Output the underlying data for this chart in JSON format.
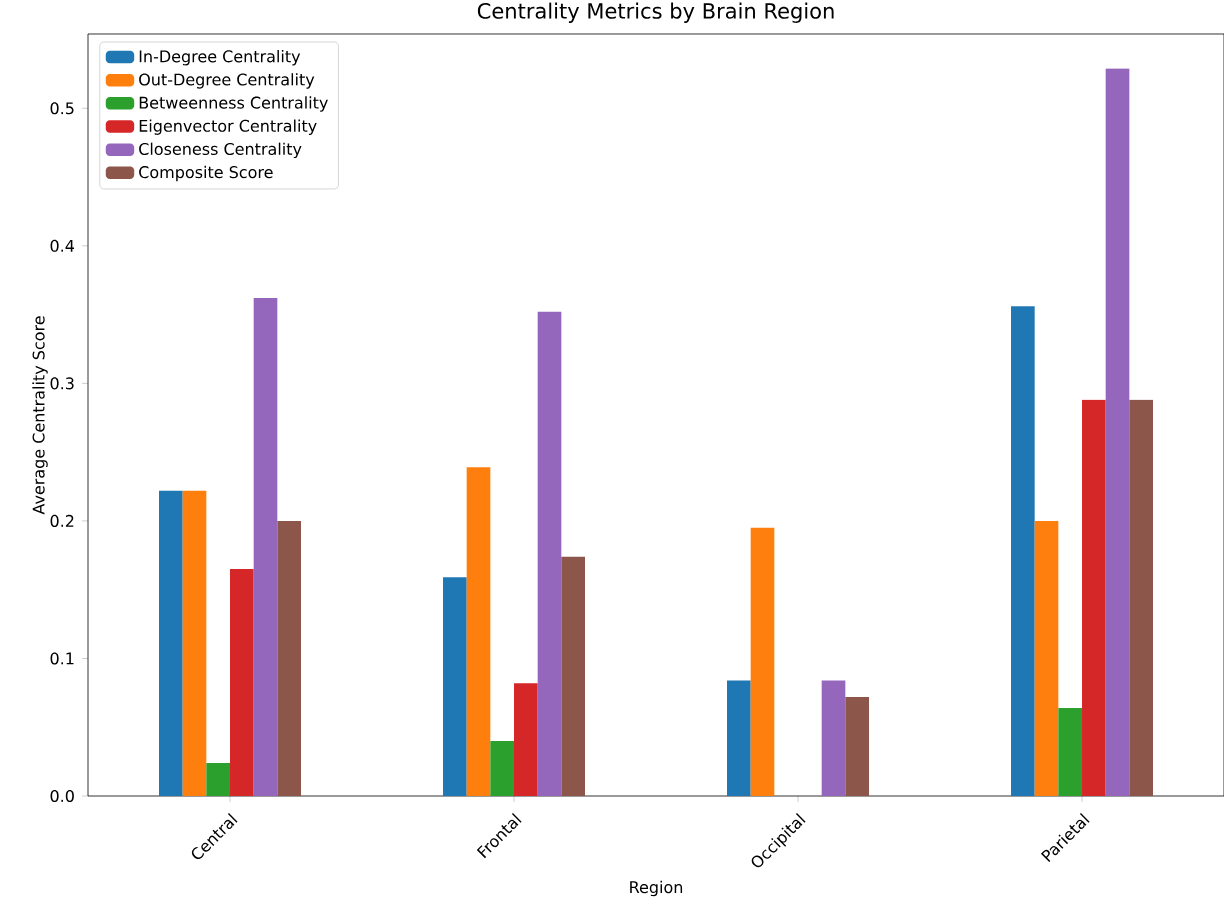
{
  "chart_data": {
    "type": "bar",
    "title": "Centrality Metrics by Brain Region",
    "xlabel": "Region",
    "ylabel": "Average Centrality Score",
    "categories": [
      "Central",
      "Frontal",
      "Occipital",
      "Parietal"
    ],
    "series": [
      {
        "name": "In-Degree Centrality",
        "color": "#1f77b4",
        "values": [
          0.222,
          0.159,
          0.084,
          0.356
        ]
      },
      {
        "name": "Out-Degree Centrality",
        "color": "#ff7f0e",
        "values": [
          0.222,
          0.239,
          0.195,
          0.2
        ]
      },
      {
        "name": "Betweenness Centrality",
        "color": "#2ca02c",
        "values": [
          0.024,
          0.04,
          0.0,
          0.064
        ]
      },
      {
        "name": "Eigenvector Centrality",
        "color": "#d62728",
        "values": [
          0.165,
          0.082,
          0.0,
          0.288
        ]
      },
      {
        "name": "Closeness Centrality",
        "color": "#9467bd",
        "values": [
          0.362,
          0.352,
          0.084,
          0.529
        ]
      },
      {
        "name": "Composite Score",
        "color": "#8c564b",
        "values": [
          0.2,
          0.174,
          0.072,
          0.288
        ]
      }
    ],
    "ylim": [
      0,
      0.554
    ],
    "yticks": [
      {
        "value": 0,
        "label": "0.0"
      },
      0.1,
      0.2,
      0.3,
      0.4,
      0.5
    ],
    "grid": false,
    "legend": "top left"
  }
}
